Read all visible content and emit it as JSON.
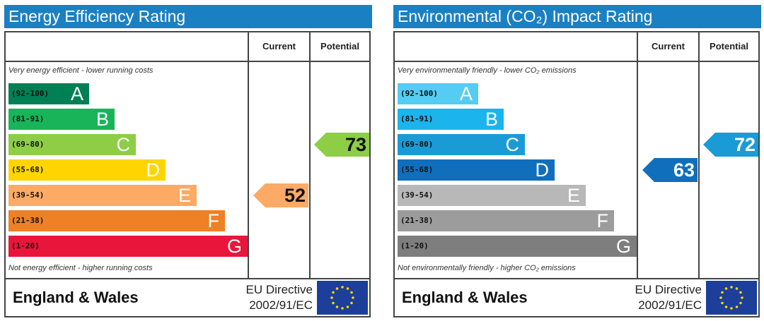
{
  "chart_data": [
    {
      "type": "bar",
      "title": "Energy Efficiency Rating",
      "column_headers": [
        "Current",
        "Potential"
      ],
      "top_note": "Very energy efficient - lower running costs",
      "bottom_note": "Not energy efficient - higher running costs",
      "bands": [
        {
          "range": "(92-100)",
          "letter": "A",
          "color": "#008054"
        },
        {
          "range": "(81-91)",
          "letter": "B",
          "color": "#19b459"
        },
        {
          "range": "(69-80)",
          "letter": "C",
          "color": "#8dce46"
        },
        {
          "range": "(55-68)",
          "letter": "D",
          "color": "#ffd500"
        },
        {
          "range": "(39-54)",
          "letter": "E",
          "color": "#fcaa65"
        },
        {
          "range": "(21-38)",
          "letter": "F",
          "color": "#ef8023"
        },
        {
          "range": "(1-20)",
          "letter": "G",
          "color": "#e9153b"
        }
      ],
      "current": {
        "value": 52,
        "band": "E",
        "color": "#fcaa65"
      },
      "potential": {
        "value": 73,
        "band": "C",
        "color": "#8dce46"
      },
      "footer": {
        "country": "England & Wales",
        "directive_line1": "EU Directive",
        "directive_line2": "2002/91/EC"
      }
    },
    {
      "type": "bar",
      "title": "Environmental (CO₂) Impact Rating",
      "column_headers": [
        "Current",
        "Potential"
      ],
      "top_note": "Very environmentally friendly - lower CO₂ emissions",
      "bottom_note": "Not environmentally friendly - higher CO₂ emissions",
      "bands": [
        {
          "range": "(92-100)",
          "letter": "A",
          "color": "#55ccf2"
        },
        {
          "range": "(81-91)",
          "letter": "B",
          "color": "#1bb4ec"
        },
        {
          "range": "(69-80)",
          "letter": "C",
          "color": "#1a9bd6"
        },
        {
          "range": "(55-68)",
          "letter": "D",
          "color": "#0f6fbc"
        },
        {
          "range": "(39-54)",
          "letter": "E",
          "color": "#b8b8b8"
        },
        {
          "range": "(21-38)",
          "letter": "F",
          "color": "#9c9c9c"
        },
        {
          "range": "(1-20)",
          "letter": "G",
          "color": "#7e7e7e"
        }
      ],
      "current": {
        "value": 63,
        "band": "D",
        "color": "#0f6fbc"
      },
      "potential": {
        "value": 72,
        "band": "C",
        "color": "#1a9bd6"
      },
      "footer": {
        "country": "England & Wales",
        "directive_line1": "EU Directive",
        "directive_line2": "2002/91/EC"
      }
    }
  ]
}
